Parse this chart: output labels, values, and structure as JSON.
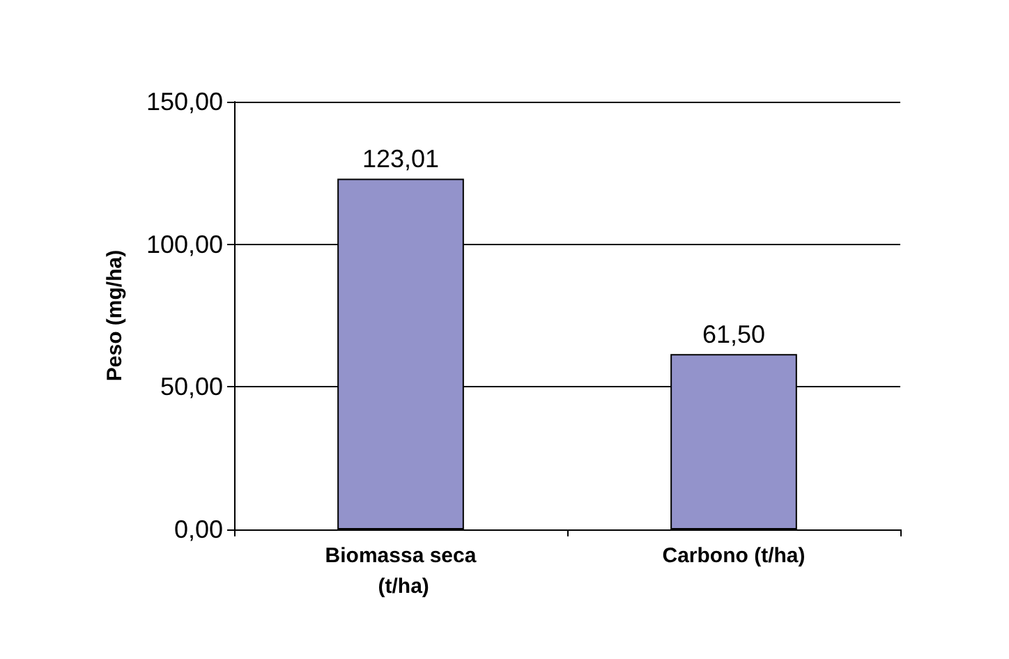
{
  "chart_data": {
    "type": "bar",
    "ylabel": "Peso (mg/ha)",
    "categories": [
      "Biomassa seca (t/ha)",
      "Carbono (t/ha)"
    ],
    "values": [
      123.01,
      61.5
    ],
    "value_labels": [
      "123,01",
      "61,50"
    ],
    "color": "#9393cb",
    "ylim": [
      0,
      150
    ],
    "yticks": [
      {
        "value": 0,
        "label": "0,00"
      },
      {
        "value": 50,
        "label": "50,00"
      },
      {
        "value": 100,
        "label": "100,00"
      },
      {
        "value": 150,
        "label": "150,00"
      }
    ],
    "grid": "y"
  }
}
